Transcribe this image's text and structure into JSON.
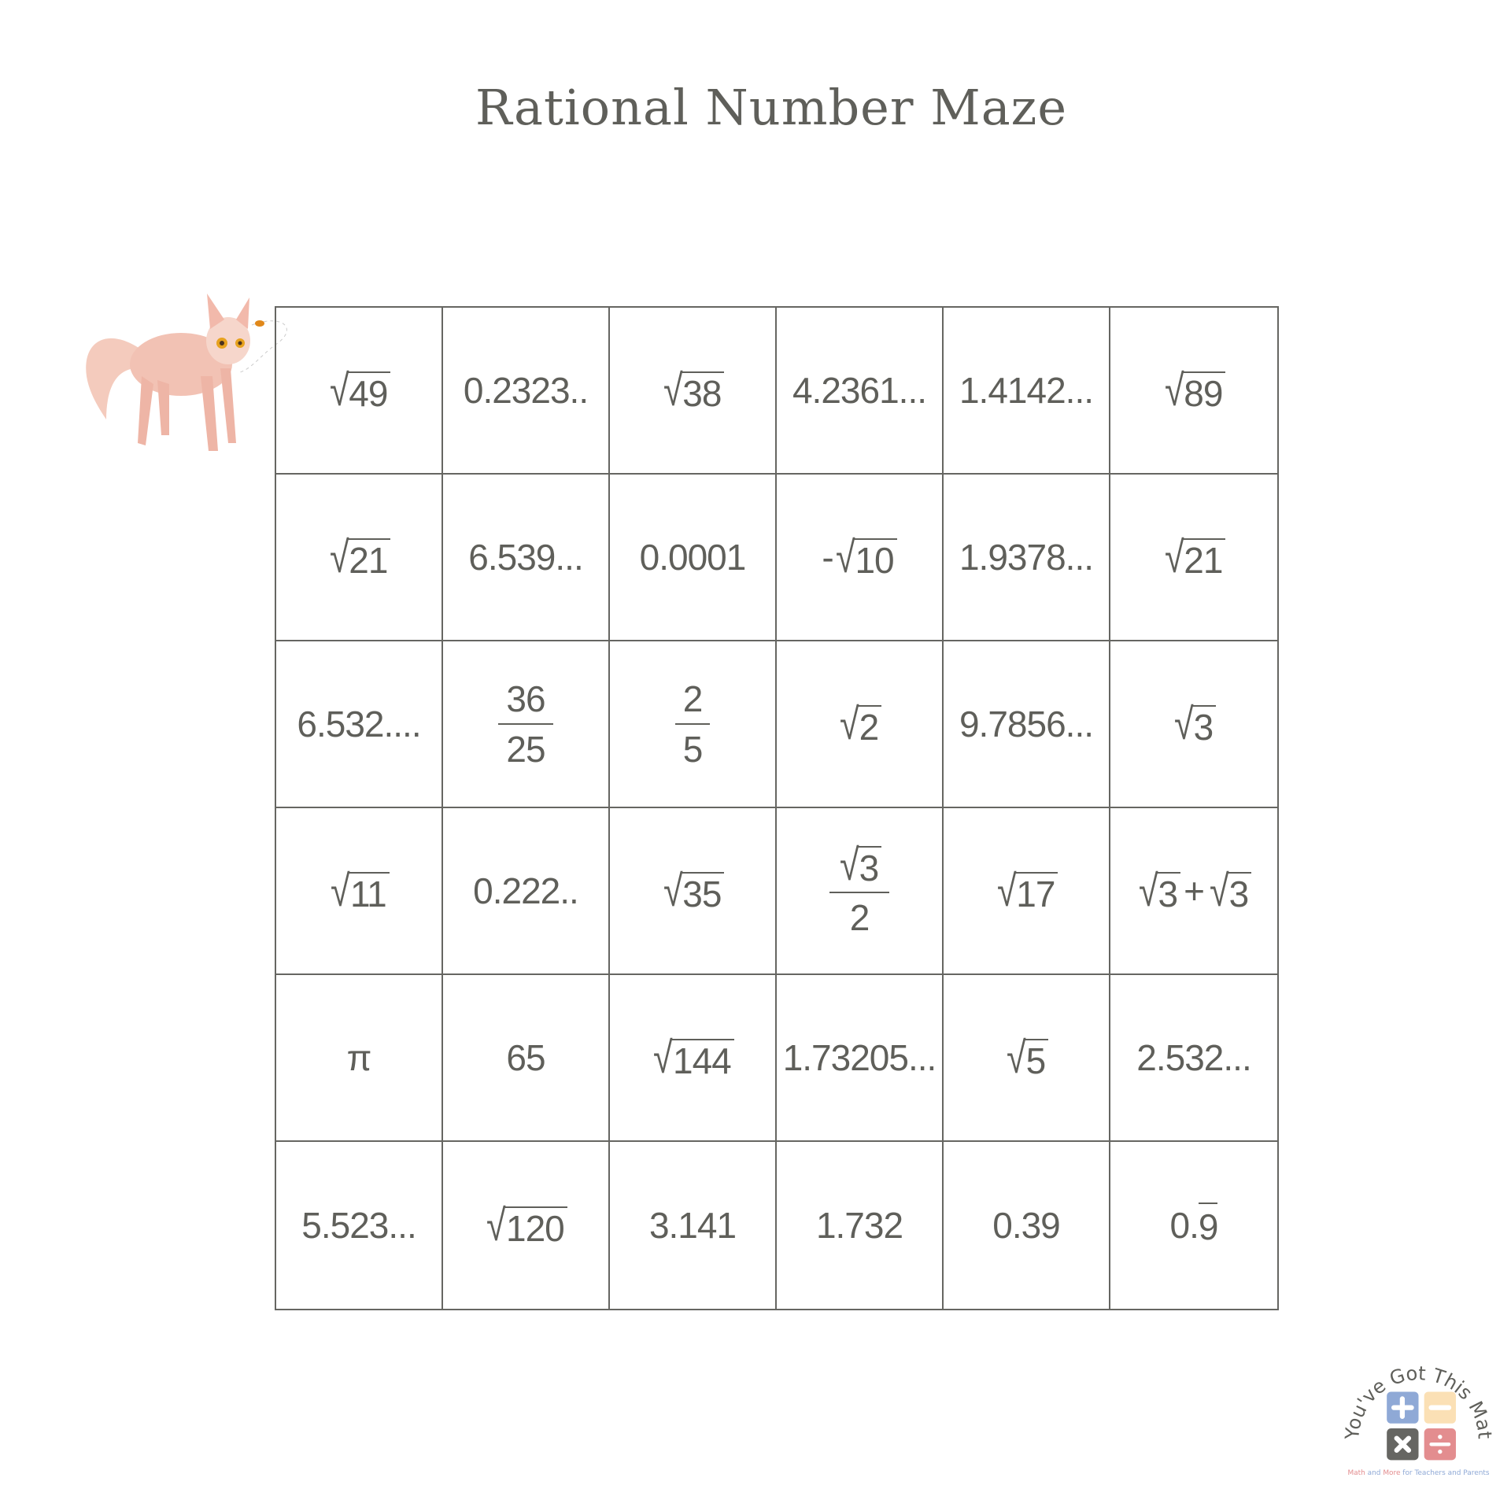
{
  "title": "Rational Number Maze",
  "colors": {
    "text": "#5f5f5a",
    "grid": "#666662",
    "cat": "#f2c2b4",
    "logo_plus": "#8fa9d6",
    "logo_minus": "#fbe0b5",
    "logo_times": "#666662",
    "logo_divide": "#e38d8f"
  },
  "icons": {
    "start": "cat-with-bee-illustration",
    "brand": "yg-math-logo"
  },
  "grid": [
    [
      {
        "k": "sqrt",
        "v": "49"
      },
      {
        "k": "text",
        "v": "0.2323.."
      },
      {
        "k": "sqrt",
        "v": "38"
      },
      {
        "k": "text",
        "v": "4.2361..."
      },
      {
        "k": "text",
        "v": "1.4142..."
      },
      {
        "k": "sqrt",
        "v": "89"
      }
    ],
    [
      {
        "k": "sqrt",
        "v": "21"
      },
      {
        "k": "text",
        "v": "6.539..."
      },
      {
        "k": "text",
        "v": "0.0001"
      },
      {
        "k": "negsqrt",
        "v": "10"
      },
      {
        "k": "text",
        "v": "1.9378..."
      },
      {
        "k": "sqrt",
        "v": "21"
      }
    ],
    [
      {
        "k": "text",
        "v": "6.532...."
      },
      {
        "k": "frac",
        "num": "36",
        "den": "25"
      },
      {
        "k": "frac",
        "num": "2",
        "den": "5"
      },
      {
        "k": "sqrt",
        "v": "2"
      },
      {
        "k": "text",
        "v": "9.7856..."
      },
      {
        "k": "sqrt",
        "v": "3"
      }
    ],
    [
      {
        "k": "sqrt",
        "v": "11"
      },
      {
        "k": "text",
        "v": "0.222.."
      },
      {
        "k": "sqrt",
        "v": "35"
      },
      {
        "k": "sqrtfrac",
        "num": "3",
        "den": "2"
      },
      {
        "k": "sqrt",
        "v": "17"
      },
      {
        "k": "sqrtsum",
        "a": "3",
        "b": "3",
        "op": "+"
      }
    ],
    [
      {
        "k": "text",
        "v": "π"
      },
      {
        "k": "text",
        "v": "65"
      },
      {
        "k": "sqrt",
        "v": "144"
      },
      {
        "k": "text",
        "v": "1.73205..."
      },
      {
        "k": "sqrt",
        "v": "5"
      },
      {
        "k": "text",
        "v": "2.532..."
      }
    ],
    [
      {
        "k": "text",
        "v": "5.523..."
      },
      {
        "k": "sqrt",
        "v": "120"
      },
      {
        "k": "text",
        "v": "3.141"
      },
      {
        "k": "text",
        "v": "1.732"
      },
      {
        "k": "text",
        "v": "0.39"
      },
      {
        "k": "repeat",
        "base": "0.",
        "rep": "9"
      }
    ]
  ],
  "logo": {
    "arc_text": "You've Got This Math",
    "tagline": [
      {
        "t": "Math",
        "c": "#e38d8f"
      },
      {
        "t": " and ",
        "c": "#8fa9d6"
      },
      {
        "t": "More",
        "c": "#e38d8f"
      },
      {
        "t": " for Teachers and Parents",
        "c": "#8fa9d6"
      }
    ]
  }
}
